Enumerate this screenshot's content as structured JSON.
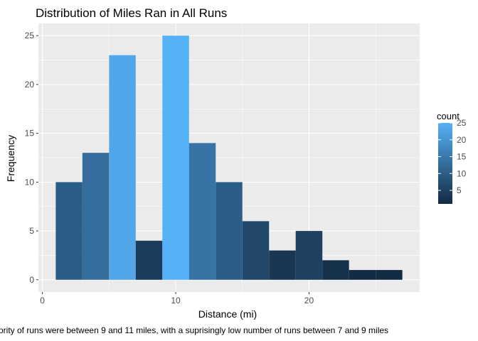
{
  "chart_data": {
    "type": "bar",
    "title": "Distribution of Miles Ran in All Runs",
    "xlabel": "Distance (mi)",
    "ylabel": "Frequency",
    "caption": "ority of runs were between 9 and 11 miles, with a suprisingly low number of runs between 7 and 9 miles",
    "bin_width": 2,
    "bins": [
      {
        "start": 1,
        "end": 3,
        "count": 10
      },
      {
        "start": 3,
        "end": 5,
        "count": 13
      },
      {
        "start": 5,
        "end": 7,
        "count": 23
      },
      {
        "start": 7,
        "end": 9,
        "count": 4
      },
      {
        "start": 9,
        "end": 11,
        "count": 25
      },
      {
        "start": 11,
        "end": 13,
        "count": 14
      },
      {
        "start": 13,
        "end": 15,
        "count": 10
      },
      {
        "start": 15,
        "end": 17,
        "count": 6
      },
      {
        "start": 17,
        "end": 19,
        "count": 3
      },
      {
        "start": 19,
        "end": 21,
        "count": 5
      },
      {
        "start": 21,
        "end": 23,
        "count": 2
      },
      {
        "start": 23,
        "end": 25,
        "count": 1
      },
      {
        "start": 25,
        "end": 27,
        "count": 1
      }
    ],
    "xlim": [
      -0.3,
      28.3
    ],
    "ylim": [
      -1.25,
      26.25
    ],
    "x_ticks": [
      0,
      10,
      20
    ],
    "x_tick_labels": [
      "0",
      "10",
      "20"
    ],
    "y_ticks": [
      0,
      5,
      10,
      15,
      20,
      25
    ],
    "y_tick_labels": [
      "0",
      "5",
      "10",
      "15",
      "20",
      "25"
    ],
    "grid": true,
    "panel_background": "#ebebeb",
    "grid_color": "#ffffff",
    "fill_scale": {
      "low_color": "#132B43",
      "high_color": "#56B1F7",
      "min": 1,
      "max": 25
    },
    "legend": {
      "title": "count",
      "position": "right",
      "ticks": [
        5,
        10,
        15,
        20,
        25
      ],
      "tick_labels": [
        "5",
        "10",
        "15",
        "20",
        "25"
      ]
    }
  }
}
